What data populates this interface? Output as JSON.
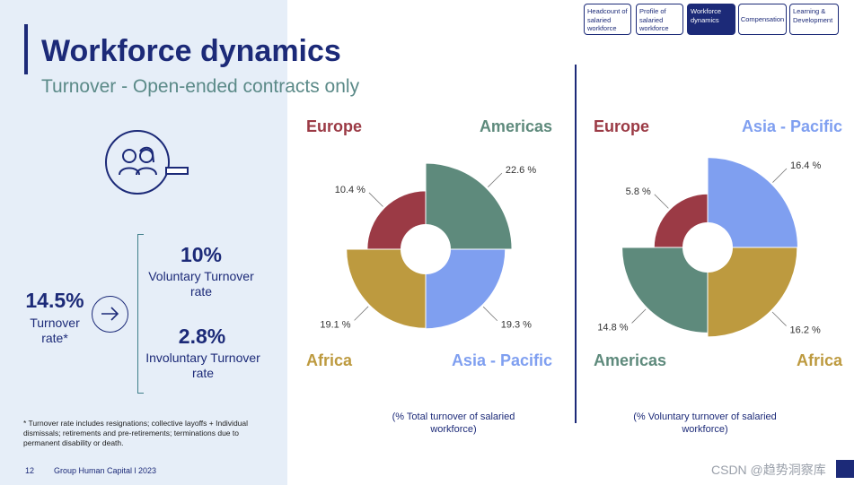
{
  "header": {
    "title": "Workforce dynamics",
    "subtitle": "Turnover - Open-ended contracts only"
  },
  "nav": {
    "tabs": [
      {
        "label": "Headcount of salaried workforce"
      },
      {
        "label": "Profile of salaried workforce"
      },
      {
        "label": "Workforce dynamics",
        "active": true
      },
      {
        "label": "Compensation"
      },
      {
        "label": "Learning & Development"
      }
    ]
  },
  "icons": {
    "people": "people-icon",
    "arrow": "arrow-right-icon"
  },
  "kpi": {
    "total_value": "14.5%",
    "total_label": "Turnover rate*",
    "voluntary_value": "10%",
    "voluntary_label": "Voluntary Turnover rate",
    "involuntary_value": "2.8%",
    "involuntary_label": "Involuntary Turnover rate"
  },
  "footnote": "* Turnover rate includes resignations; collective layoffs + Individual dismissals; retirements and pre-retirements; terminations due to permanent disability or death.",
  "footer": {
    "page": "12",
    "text": "Group Human Capital l 2023"
  },
  "watermark": "CSDN @趋势洞察库",
  "colors": {
    "Europe": "#9b3a45",
    "Americas": "#5e8a7c",
    "Asia - Pacific": "#7f9ff0",
    "Africa": "#bd9a3f",
    "navy": "#1c2a78"
  },
  "chart_data": [
    {
      "type": "pie",
      "caption": "(% Total turnover of salaried workforce)",
      "corner_labels": [
        "Europe",
        "Americas",
        "Africa",
        "Asia - Pacific"
      ],
      "slices": [
        {
          "name": "Europe",
          "value": 10.4,
          "label": "10.4 %"
        },
        {
          "name": "Americas",
          "value": 22.6,
          "label": "22.6 %"
        },
        {
          "name": "Asia - Pacific",
          "value": 19.3,
          "label": "19.3 %"
        },
        {
          "name": "Africa",
          "value": 19.1,
          "label": "19.1 %"
        }
      ]
    },
    {
      "type": "pie",
      "caption": "(% Voluntary turnover of salaried workforce)",
      "corner_labels": [
        "Europe",
        "Asia - Pacific",
        "Americas",
        "Africa"
      ],
      "slices": [
        {
          "name": "Europe",
          "value": 5.8,
          "label": "5.8 %"
        },
        {
          "name": "Asia - Pacific",
          "value": 16.4,
          "label": "16.4 %"
        },
        {
          "name": "Africa",
          "value": 16.2,
          "label": "16.2 %"
        },
        {
          "name": "Americas",
          "value": 14.8,
          "label": "14.8 %"
        }
      ]
    }
  ]
}
